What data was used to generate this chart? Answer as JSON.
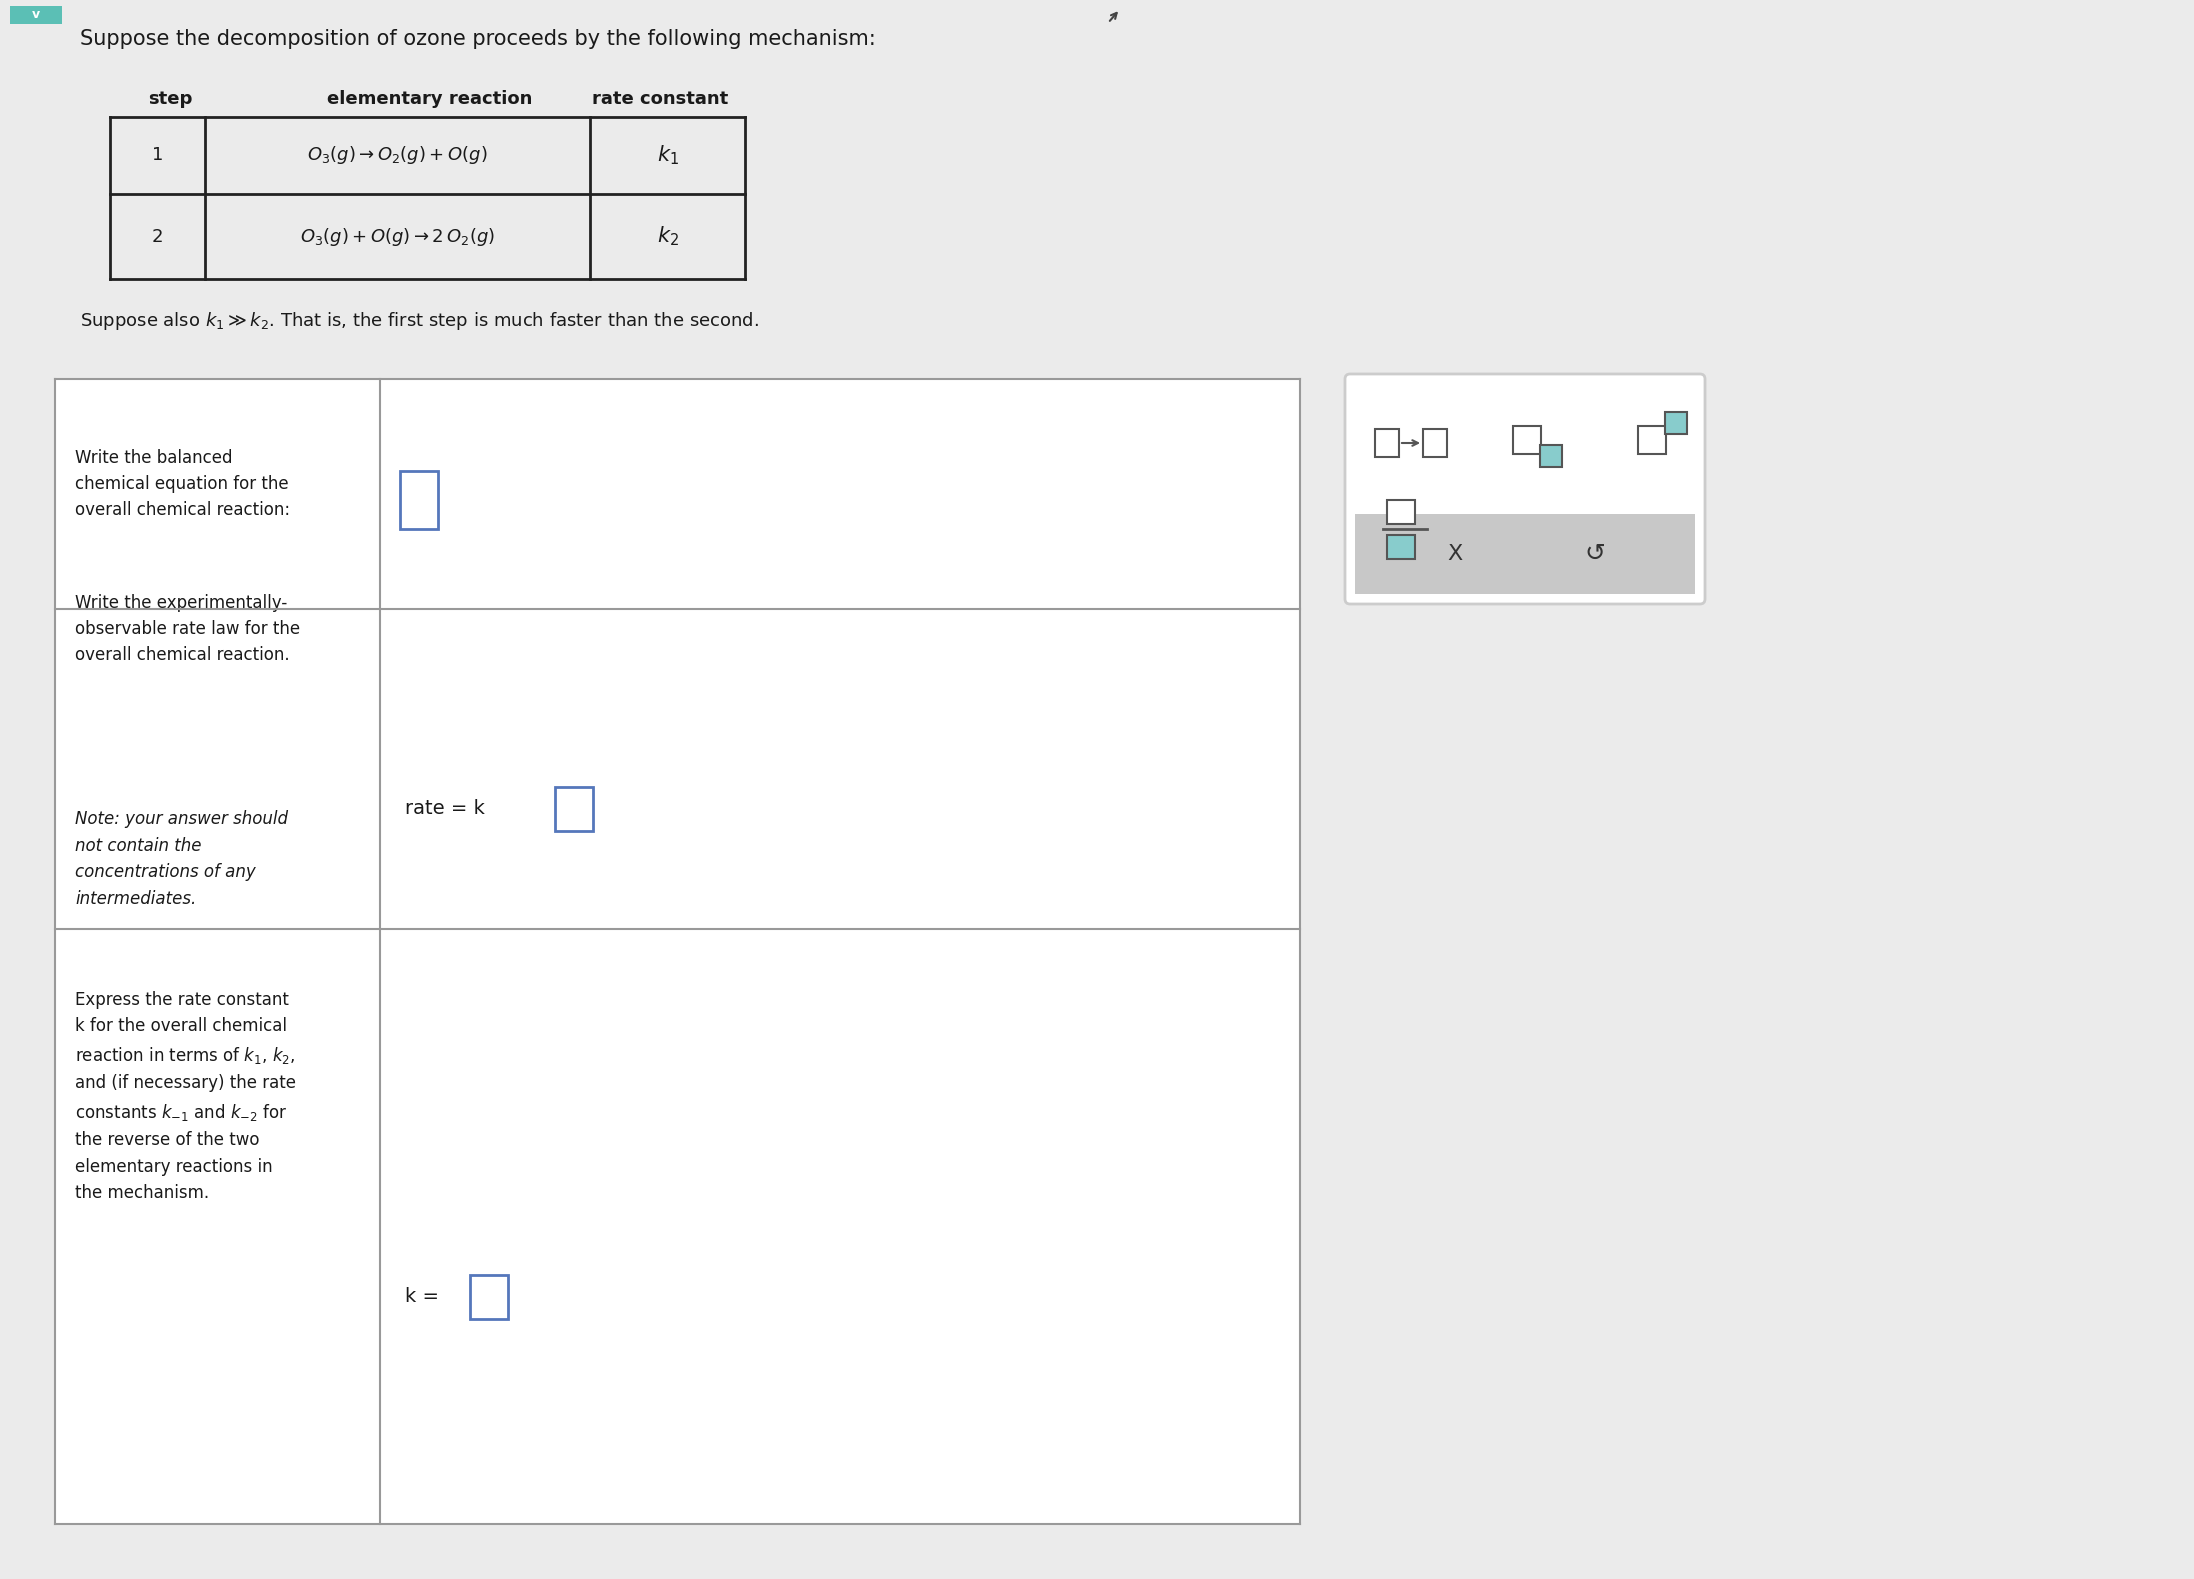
{
  "title_text": "Suppose the decomposition of ozone proceeds by the following mechanism:",
  "bg_color": "#e8e8e8",
  "table_header": [
    "step",
    "elementary reaction",
    "rate constant"
  ],
  "suppose_text": "Suppose also $k_1 \\gg k_2$. That is, the first step is much faster than the second.",
  "row1_label": "Write the balanced\nchemical equation for the\noverall chemical reaction:",
  "row2_label_top": "Write the experimentally-\nobservable rate law for the\noverall chemical reaction.",
  "row2_label_bottom": "Note: your answer should\nnot contain the\nconcentrations of any\nintermediates.",
  "row3_label": "Express the rate constant\nk for the overall chemical\nreaction in terms of $k_1$, $k_2$,\nand (if necessary) the rate\nconstants $k_{-1}$ and $k_{-2}$ for\nthe reverse of the two\nelementary reactions in\nthe mechanism.",
  "teal_color": "#5bbfb5",
  "border_dark": "#222222",
  "border_light": "#999999",
  "text_color": "#1a1a1a",
  "input_border": "#5577bb",
  "toolbar_bg": "#f5f5f5",
  "toolbar_gray": "#c8c8c8",
  "icon_teal": "#88cccc"
}
